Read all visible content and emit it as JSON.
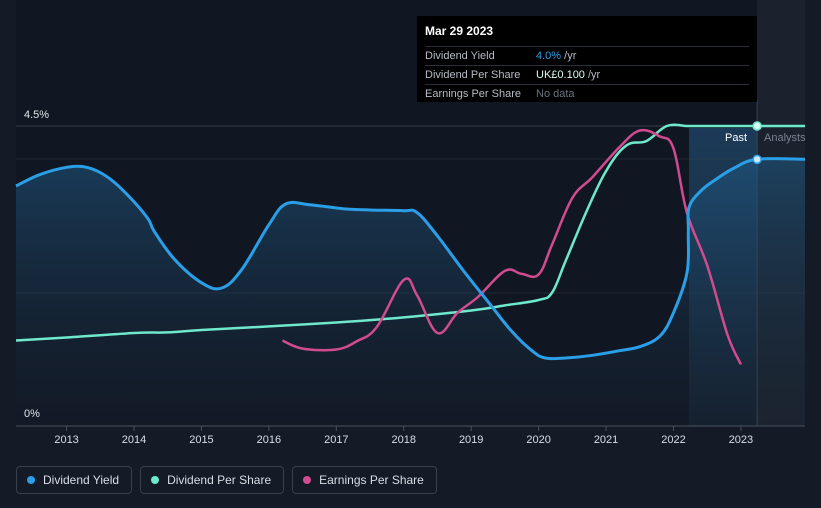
{
  "tooltip": {
    "date": "Mar 29 2023",
    "rows": [
      {
        "label": "Dividend Yield",
        "value": "4.0%",
        "unit": " /yr"
      },
      {
        "label": "Dividend Per Share",
        "value": "UK£0.100",
        "unit": " /yr"
      },
      {
        "label": "Earnings Per Share",
        "value": "No data",
        "unit": ""
      }
    ]
  },
  "regions": {
    "past": "Past",
    "analysts": "Analysts"
  },
  "colors": {
    "dividend_yield": "#2a9fe8",
    "dividend_per_share": "#6fe9cc",
    "earnings_per_share": "#d14b8f",
    "background": "#151b26"
  },
  "legend": [
    {
      "label": "Dividend Yield",
      "color": "#2a9fe8"
    },
    {
      "label": "Dividend Per Share",
      "color": "#6fe9cc"
    },
    {
      "label": "Earnings Per Share",
      "color": "#d14b8f"
    }
  ],
  "chart_data": {
    "type": "line",
    "title": "",
    "xlabel": "",
    "ylabel": "",
    "x_ticks": [
      "2013",
      "2014",
      "2015",
      "2016",
      "2017",
      "2018",
      "2019",
      "2020",
      "2021",
      "2022",
      "2023"
    ],
    "y_tick_labels": [
      "4.5%",
      "0%"
    ],
    "xlim": [
      2012.25,
      2023.95
    ],
    "ylim": [
      0,
      4.5
    ],
    "past_end": 2023.24,
    "forecast_start": 2022.23,
    "series": [
      {
        "name": "Dividend Yield",
        "unit": "%",
        "x": [
          2012.25,
          2012.6,
          2013.0,
          2013.3,
          2013.6,
          2013.9,
          2014.2,
          2014.3,
          2014.6,
          2015.0,
          2015.3,
          2015.6,
          2016.0,
          2016.25,
          2016.6,
          2017.1,
          2017.5,
          2018.0,
          2018.2,
          2018.5,
          2018.9,
          2019.3,
          2019.6,
          2019.9,
          2020.1,
          2020.4,
          2020.8,
          2021.2,
          2021.5,
          2021.8,
          2022.0,
          2022.2,
          2022.22,
          2022.23,
          2022.4,
          2022.6,
          2022.9,
          2023.24,
          2023.95
        ],
        "y": [
          3.6,
          3.77,
          3.88,
          3.88,
          3.74,
          3.47,
          3.12,
          2.92,
          2.5,
          2.15,
          2.07,
          2.35,
          3.02,
          3.33,
          3.32,
          3.26,
          3.24,
          3.23,
          3.2,
          2.85,
          2.31,
          1.8,
          1.42,
          1.13,
          1.02,
          1.02,
          1.06,
          1.13,
          1.19,
          1.35,
          1.7,
          2.3,
          2.9,
          3.28,
          3.52,
          3.68,
          3.87,
          4.0,
          4.0
        ]
      },
      {
        "name": "Dividend Per Share",
        "unit": "UK£",
        "x": [
          2012.25,
          2013.0,
          2014.0,
          2014.5,
          2015.0,
          2016.0,
          2017.0,
          2018.0,
          2019.0,
          2019.5,
          2020.0,
          2020.2,
          2020.4,
          2020.7,
          2021.0,
          2021.3,
          2021.6,
          2021.9,
          2022.2,
          2022.3,
          2023.24,
          2023.95
        ],
        "y": [
          0.0285,
          0.0295,
          0.031,
          0.0312,
          0.032,
          0.0332,
          0.0345,
          0.0362,
          0.0385,
          0.0402,
          0.042,
          0.0445,
          0.055,
          0.071,
          0.085,
          0.0935,
          0.095,
          0.1,
          0.1,
          0.1,
          0.1,
          0.1
        ]
      },
      {
        "name": "Earnings Per Share",
        "unit": "UK£",
        "x": [
          2016.2,
          2016.5,
          2017.0,
          2017.3,
          2017.6,
          2018.0,
          2018.2,
          2018.5,
          2018.8,
          2019.1,
          2019.5,
          2019.75,
          2020.0,
          2020.2,
          2020.5,
          2020.8,
          2021.2,
          2021.5,
          2021.8,
          2022.0,
          2022.2,
          2022.5,
          2022.8,
          2023.0
        ],
        "y": [
          0.0285,
          0.0258,
          0.0255,
          0.0282,
          0.033,
          0.0487,
          0.0435,
          0.031,
          0.0378,
          0.043,
          0.0517,
          0.0507,
          0.0505,
          0.0605,
          0.076,
          0.083,
          0.093,
          0.0985,
          0.0965,
          0.0925,
          0.071,
          0.0535,
          0.0305,
          0.0205
        ]
      }
    ]
  }
}
